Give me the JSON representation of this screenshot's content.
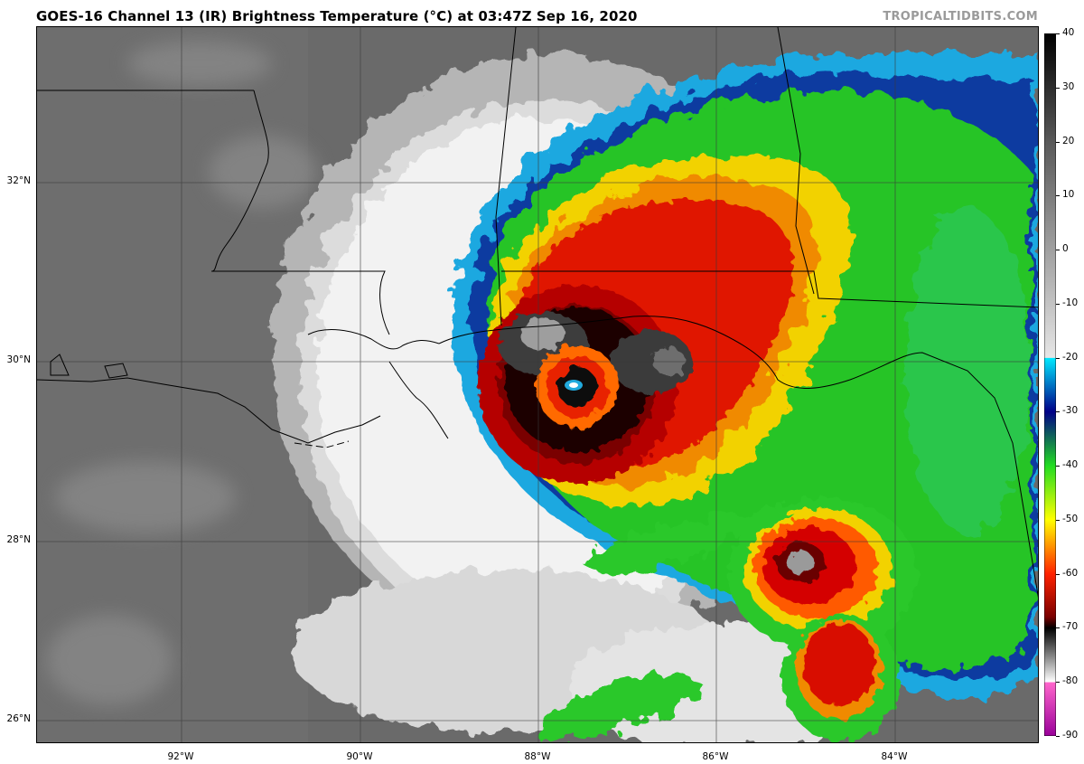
{
  "title": "GOES-16 Channel 13 (IR) Brightness Temperature (°C) at 03:47Z Sep 16, 2020",
  "credit": "TROPICALTIDBITS.COM",
  "latitude_labels": [
    "32°N",
    "30°N",
    "28°N",
    "26°N"
  ],
  "longitude_labels": [
    "92°W",
    "90°W",
    "88°W",
    "86°W",
    "84°W"
  ],
  "colorbar": {
    "labels": [
      "40",
      "30",
      "20",
      "10",
      "0",
      "-10",
      "-20",
      "-30",
      "-40",
      "-50",
      "-60",
      "-70",
      "-80",
      "-90"
    ],
    "min": -90,
    "max": 40,
    "stops": [
      {
        "t": 40,
        "color": "#000000"
      },
      {
        "t": 20,
        "color": "#595959"
      },
      {
        "t": -20,
        "color": "#e6e6e6"
      },
      {
        "t": -20.1,
        "color": "#00e8ff"
      },
      {
        "t": -30,
        "color": "#000088"
      },
      {
        "t": -40,
        "color": "#22dd22"
      },
      {
        "t": -50,
        "color": "#ffff00"
      },
      {
        "t": -60,
        "color": "#ff2200"
      },
      {
        "t": -68,
        "color": "#7a0000"
      },
      {
        "t": -70,
        "color": "#000000"
      },
      {
        "t": -80,
        "color": "#ffffff"
      },
      {
        "t": -80.1,
        "color": "#ff66cc"
      },
      {
        "t": -90,
        "color": "#990099"
      }
    ]
  }
}
